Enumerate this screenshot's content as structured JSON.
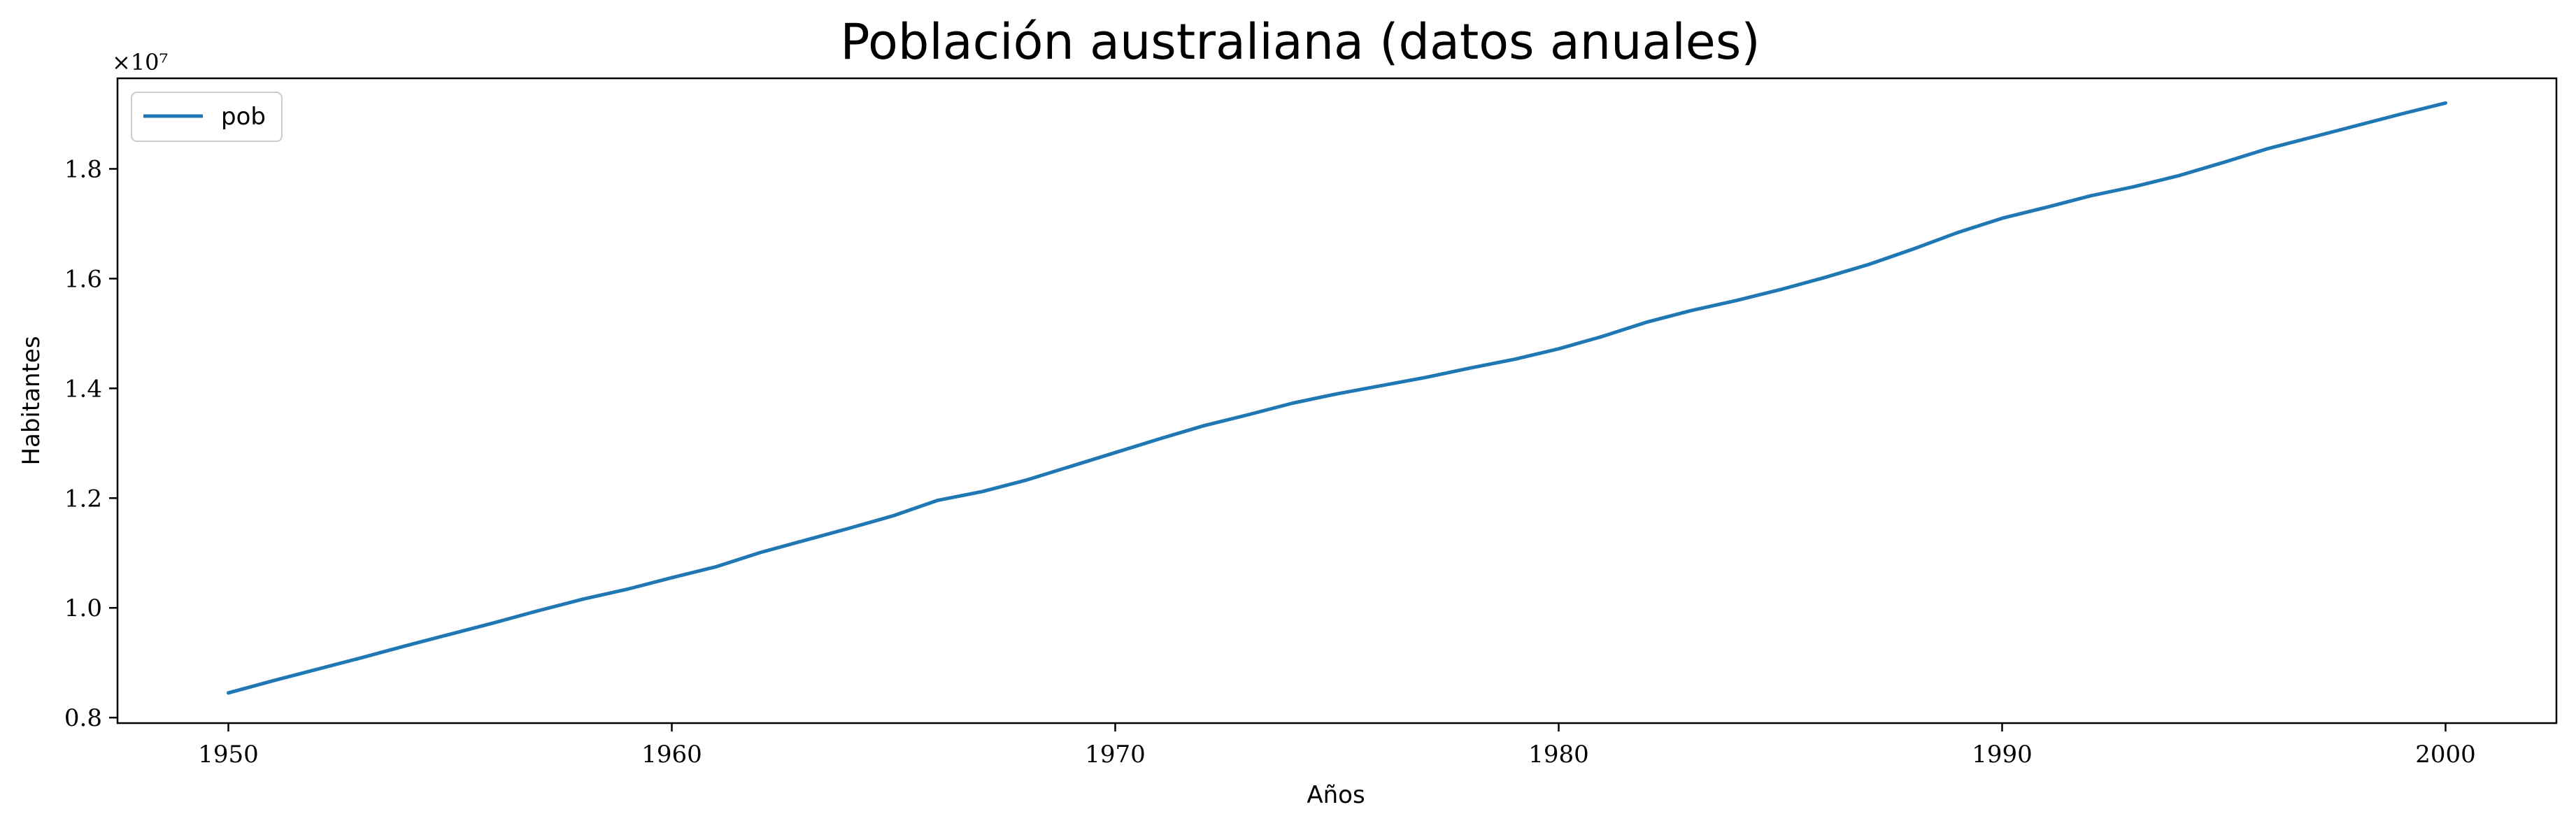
{
  "chart_data": {
    "type": "line",
    "title": "Población australiana (datos anuales)",
    "xlabel": "Años",
    "ylabel": "Habitantes",
    "y_multiplier": "×10⁷",
    "xlim": [
      1947.5,
      2002.5
    ],
    "ylim": [
      0.79,
      1.965
    ],
    "x_ticks": [
      1950,
      1960,
      1970,
      1980,
      1990,
      2000
    ],
    "y_ticks": [
      0.8,
      1.0,
      1.2,
      1.4,
      1.6,
      1.8
    ],
    "y_tick_labels": [
      "0.8",
      "1.0",
      "1.2",
      "1.4",
      "1.6",
      "1.8"
    ],
    "grid": false,
    "legend_position": "top-left",
    "colors": {
      "line": "#1f77b4"
    },
    "series": [
      {
        "name": "pob",
        "x": [
          1950,
          1951,
          1952,
          1953,
          1954,
          1955,
          1956,
          1957,
          1958,
          1959,
          1960,
          1961,
          1962,
          1963,
          1964,
          1965,
          1966,
          1967,
          1968,
          1969,
          1970,
          1971,
          1972,
          1973,
          1974,
          1975,
          1976,
          1977,
          1978,
          1979,
          1980,
          1981,
          1982,
          1983,
          1984,
          1985,
          1986,
          1987,
          1988,
          1989,
          1990,
          1991,
          1992,
          1993,
          1994,
          1995,
          1996,
          1997,
          1998,
          1999,
          2000
        ],
        "values": [
          0.845,
          0.867,
          0.888,
          0.909,
          0.931,
          0.952,
          0.973,
          0.995,
          1.016,
          1.034,
          1.055,
          1.075,
          1.101,
          1.123,
          1.145,
          1.168,
          1.196,
          1.212,
          1.233,
          1.258,
          1.283,
          1.308,
          1.332,
          1.352,
          1.373,
          1.39,
          1.405,
          1.42,
          1.437,
          1.453,
          1.472,
          1.495,
          1.521,
          1.542,
          1.56,
          1.58,
          1.602,
          1.626,
          1.654,
          1.684,
          1.71,
          1.73,
          1.751,
          1.768,
          1.788,
          1.812,
          1.837,
          1.858,
          1.879,
          1.9,
          1.92
        ]
      }
    ]
  }
}
